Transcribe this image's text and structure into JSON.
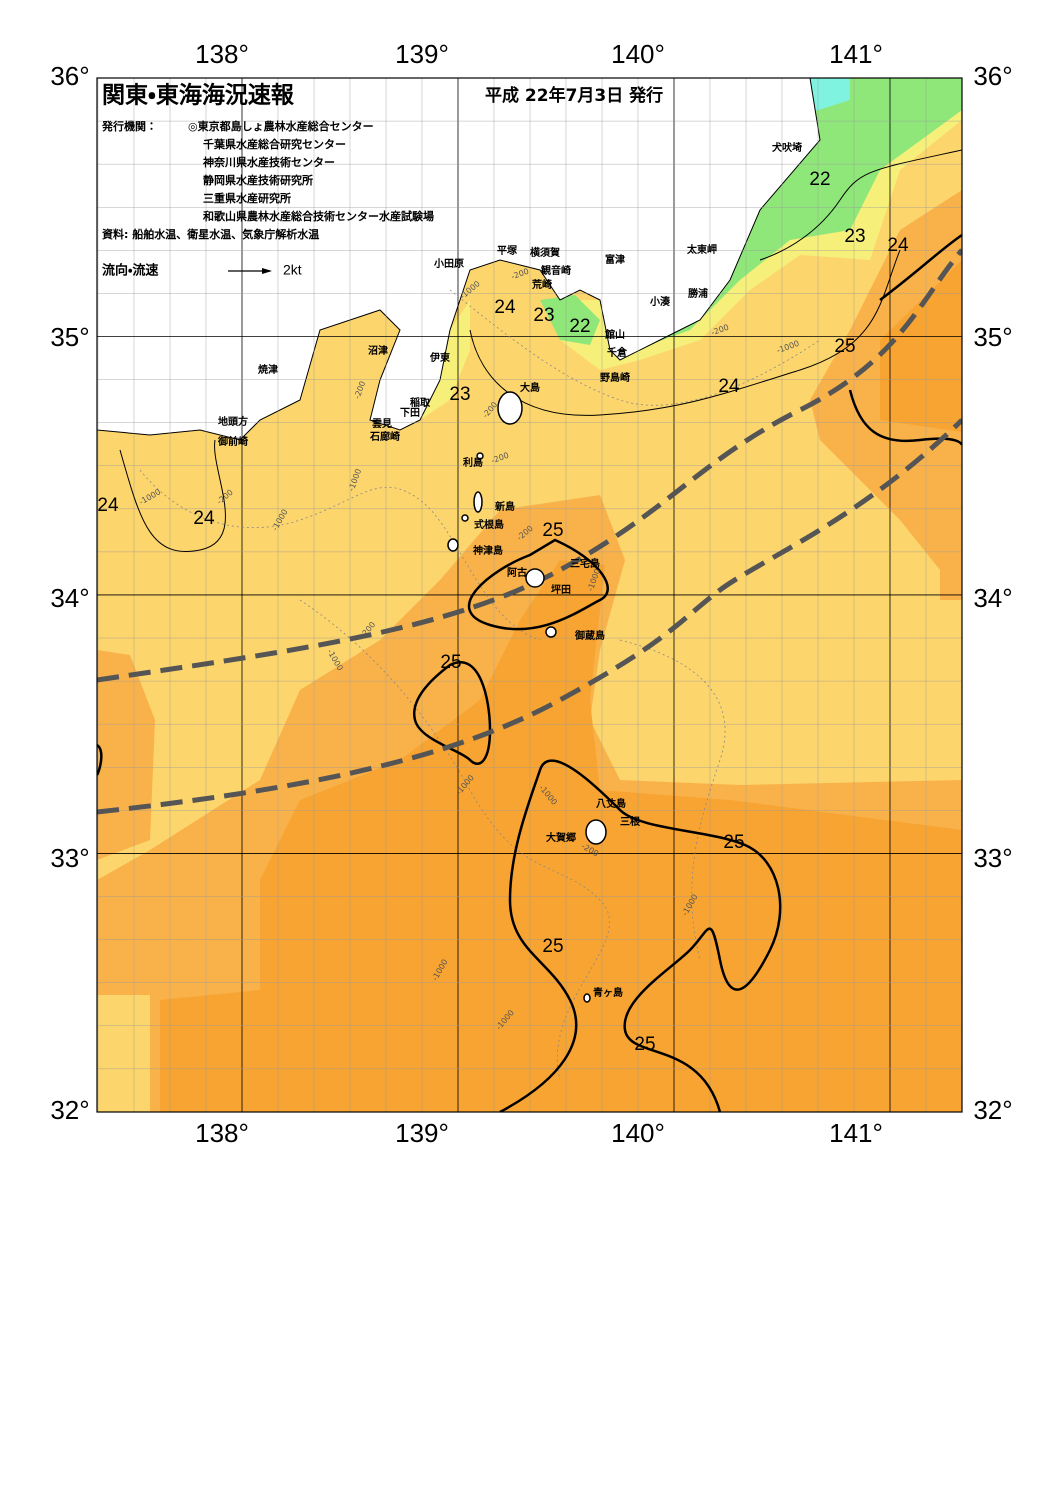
{
  "header": {
    "title": "関東・東海海況速報",
    "date": "平成 22年7月3日 発行",
    "issuers_label": "発行機関：",
    "issuers": [
      "◎東京都島しょ農林水産総合センター",
      "千葉県水産総合研究センター",
      "神奈川県水産技術センター",
      "静岡県水産技術研究所",
      "三重県水産研究所",
      "和歌山県農林水産総合技術センター水産試験場"
    ],
    "source": "資料: 船舶水温、衛星水温、気象庁解析水温",
    "legend_label": "流向・流速",
    "legend_scale": "2kt"
  },
  "axes": {
    "longitudes": [
      "138°",
      "139°",
      "140°",
      "141°"
    ],
    "latitudes": [
      "36°",
      "35°",
      "34°",
      "33°",
      "32°"
    ]
  },
  "places": [
    "犬吠埼",
    "太東岬",
    "勝浦",
    "小湊",
    "富津",
    "館山",
    "千倉",
    "野島崎",
    "横須賀",
    "観音崎",
    "荒崎",
    "平塚",
    "小田原",
    "沼津",
    "伊東",
    "焼津",
    "稲取",
    "下田",
    "雲見",
    "石廊崎",
    "地頭方",
    "御前崎",
    "大島",
    "利島",
    "新島",
    "式根島",
    "神津島",
    "三宅島",
    "阿古",
    "坪田",
    "御蔵島",
    "八丈島",
    "三根",
    "大賀郷",
    "青ヶ島"
  ],
  "isotherm_labels": [
    "22",
    "23",
    "24",
    "25",
    "24",
    "24",
    "23",
    "22",
    "23",
    "24",
    "24",
    "25",
    "25",
    "25",
    "25",
    "25"
  ],
  "depth_labels": [
    "-200",
    "-1000",
    "-200",
    "-200",
    "-200",
    "-200",
    "-1000",
    "-1000",
    "-1000",
    "-200",
    "-1000",
    "-1000",
    "-1000",
    "-200",
    "-1000",
    "-1000",
    "-1000",
    "-200",
    "-1000",
    "-200",
    "-1000"
  ]
}
